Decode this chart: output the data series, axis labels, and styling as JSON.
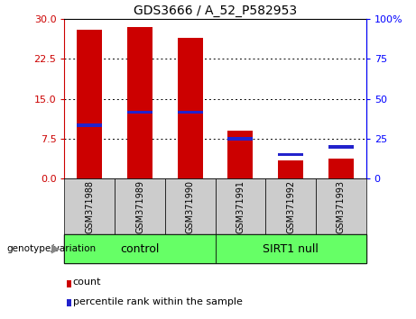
{
  "title": "GDS3666 / A_52_P582953",
  "samples": [
    "GSM371988",
    "GSM371989",
    "GSM371990",
    "GSM371991",
    "GSM371992",
    "GSM371993"
  ],
  "count_values": [
    28.0,
    28.5,
    26.5,
    9.0,
    3.5,
    3.8
  ],
  "percentile_marker_pos": [
    10.0,
    12.5,
    12.5,
    7.5,
    4.5,
    6.0
  ],
  "count_color": "#cc0000",
  "percentile_color": "#2222cc",
  "left_yaxis_ticks": [
    0,
    7.5,
    15,
    22.5,
    30
  ],
  "right_yaxis_ticks": [
    0,
    25,
    50,
    75,
    100
  ],
  "ylim": [
    0,
    30
  ],
  "right_ylim": [
    0,
    100
  ],
  "groups": [
    {
      "label": "control",
      "span": [
        0,
        3
      ],
      "color": "#66ff66"
    },
    {
      "label": "SIRT1 null",
      "span": [
        3,
        6
      ],
      "color": "#66ff66"
    }
  ],
  "group_label_prefix": "genotype/variation",
  "legend_count_label": "count",
  "legend_percentile_label": "percentile rank within the sample",
  "bar_width": 0.5,
  "tick_bg_color": "#cccccc",
  "sample_fontsize": 7,
  "title_fontsize": 10,
  "axis_fontsize": 8,
  "group_fontsize": 9,
  "legend_fontsize": 8
}
